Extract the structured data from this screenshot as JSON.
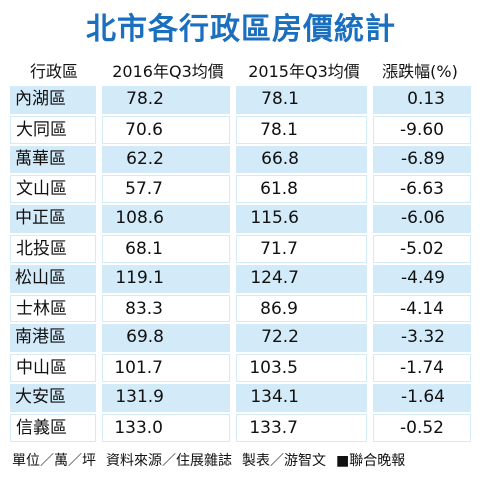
{
  "header": {
    "title": "北市各行政區房價統計"
  },
  "table": {
    "columns": [
      "行政區",
      "2016年Q3均價",
      "2015年Q3均價",
      "漲跌幅(%)"
    ],
    "rows": [
      [
        "內湖區",
        "78.2",
        "78.1",
        "0.13"
      ],
      [
        "大同區",
        "70.6",
        "78.1",
        "-9.60"
      ],
      [
        "萬華區",
        "62.2",
        "66.8",
        "-6.89"
      ],
      [
        "文山區",
        "57.7",
        "61.8",
        "-6.63"
      ],
      [
        "中正區",
        "108.6",
        "115.6",
        "-6.06"
      ],
      [
        "北投區",
        "68.1",
        "71.7",
        "-5.02"
      ],
      [
        "松山區",
        "119.1",
        "124.7",
        "-4.49"
      ],
      [
        "士林區",
        "83.3",
        "86.9",
        "-4.14"
      ],
      [
        "南港區",
        "69.8",
        "72.2",
        "-3.32"
      ],
      [
        "中山區",
        "101.7",
        "103.5",
        "-1.74"
      ],
      [
        "大安區",
        "131.9",
        "134.1",
        "-1.64"
      ],
      [
        "信義區",
        "133.0",
        "133.7",
        "-0.52"
      ]
    ]
  },
  "footer": {
    "items": [
      "單位／萬／坪",
      "資料來源／住展雜誌",
      "製表／游智文",
      "■聯合晚報"
    ]
  }
}
